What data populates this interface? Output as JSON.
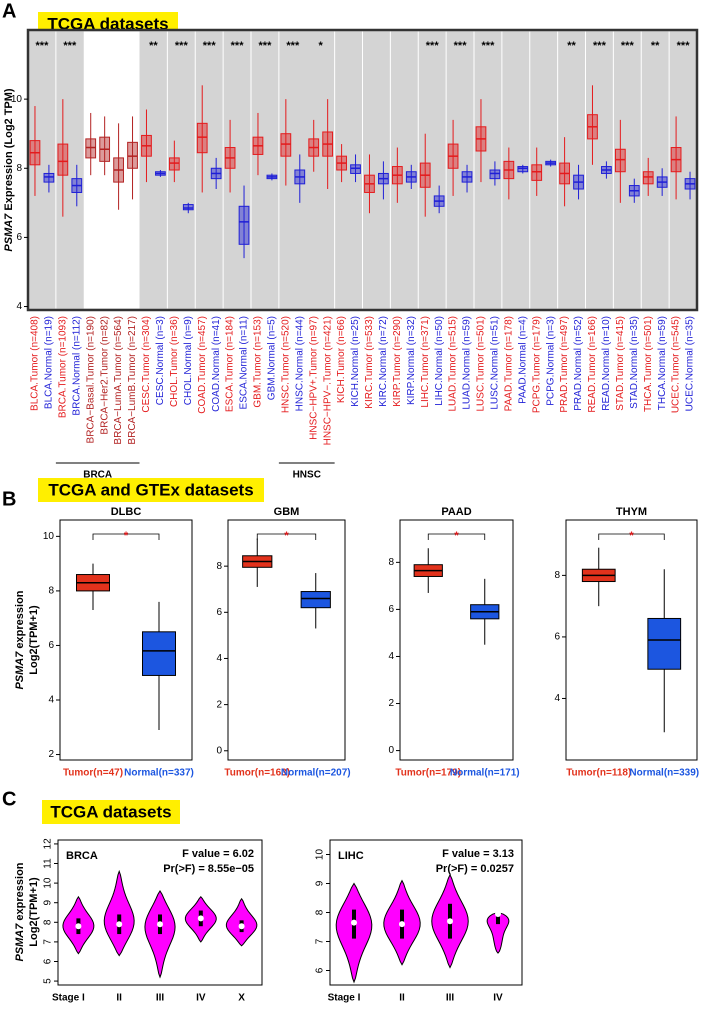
{
  "panels": [
    {
      "letter": "A",
      "badge": "TCGA datasets"
    },
    {
      "letter": "B",
      "badge": "TCGA and GTEx datasets",
      "ylabel_gene": "PSMA7",
      "ylabel": "expression",
      "ylabel2": "Log2(TPM+1)"
    },
    {
      "letter": "C",
      "badge": "TCGA datasets",
      "ylabel_gene": "PSMA7",
      "ylabel": "expression",
      "ylabel2": "Log2(TPM+1)"
    }
  ],
  "chart_data": [
    {
      "type": "box",
      "ylabel_gene": "PSMA7",
      "ylabel": "Expression (Log2 TPM)",
      "categories": [
        "BLCA.Tumor (n=408)",
        "BLCA.Normal (n=19)",
        "BRCA.Tumor (n=1093)",
        "BRCA.Normal (n=112)",
        "BRCA−Basal.Tumor (n=190)",
        "BRCA−Her2.Tumor (n=82)",
        "BRCA−LumA.Tumor (n=564)",
        "BRCA−LumB.Tumor (n=217)",
        "CESC.Tumor (n=304)",
        "CESC.Normal (n=3)",
        "CHOL.Tumor (n=36)",
        "CHOL.Normal (n=9)",
        "COAD.Tumor (n=457)",
        "COAD.Normal (n=41)",
        "ESCA.Tumor (n=184)",
        "ESCA.Normal (n=11)",
        "GBM.Tumor (n=153)",
        "GBM.Normal (n=5)",
        "HNSC.Tumor (n=520)",
        "HNSC.Normal (n=44)",
        "HNSC−HPV+.Tumor (n=97)",
        "HNSC−HPV−.Tumor (n=421)",
        "KICH.Tumor (n=66)",
        "KICH.Normal (n=25)",
        "KIRC.Tumor (n=533)",
        "KIRC.Normal (n=72)",
        "KIRP.Tumor (n=290)",
        "KIRP.Normal (n=32)",
        "LIHC.Tumor (n=371)",
        "LIHC.Normal (n=50)",
        "LUAD.Tumor (n=515)",
        "LUAD.Normal (n=59)",
        "LUSC.Tumor (n=501)",
        "LUSC.Normal (n=51)",
        "PAAD.Tumor (n=178)",
        "PAAD.Normal (n=4)",
        "PCPG.Tumor (n=179)",
        "PCPG.Normal (n=3)",
        "PRAD.Tumor (n=497)",
        "PRAD.Normal (n=52)",
        "READ.Tumor (n=166)",
        "READ.Normal (n=10)",
        "STAD.Tumor (n=415)",
        "STAD.Normal (n=35)",
        "THCA.Tumor (n=501)",
        "THCA.Normal (n=59)",
        "UCEC.Tumor (n=545)",
        "UCEC.Normal (n=35)"
      ],
      "colors": [
        "#e41a1c",
        "#1f1fd6",
        "#e41a1c",
        "#1f1fd6",
        "#b22222",
        "#b22222",
        "#b22222",
        "#b22222",
        "#e41a1c",
        "#1f1fd6",
        "#e41a1c",
        "#1f1fd6",
        "#e41a1c",
        "#1f1fd6",
        "#e41a1c",
        "#1f1fd6",
        "#e41a1c",
        "#1f1fd6",
        "#e41a1c",
        "#1f1fd6",
        "#e41a1c",
        "#e41a1c",
        "#e41a1c",
        "#1f1fd6",
        "#e41a1c",
        "#1f1fd6",
        "#e41a1c",
        "#1f1fd6",
        "#e41a1c",
        "#1f1fd6",
        "#e41a1c",
        "#1f1fd6",
        "#e41a1c",
        "#1f1fd6",
        "#e41a1c",
        "#1f1fd6",
        "#e41a1c",
        "#1f1fd6",
        "#e41a1c",
        "#1f1fd6",
        "#e41a1c",
        "#1f1fd6",
        "#e41a1c",
        "#1f1fd6",
        "#e41a1c",
        "#1f1fd6",
        "#e41a1c",
        "#1f1fd6"
      ],
      "median": [
        8.45,
        7.75,
        8.2,
        7.5,
        8.6,
        8.55,
        7.95,
        8.35,
        8.65,
        7.85,
        8.15,
        6.85,
        8.9,
        7.85,
        8.3,
        6.45,
        8.65,
        7.75,
        8.7,
        7.75,
        8.6,
        8.7,
        8.15,
        8.0,
        7.55,
        7.7,
        7.8,
        7.75,
        7.8,
        7.05,
        8.35,
        7.75,
        8.85,
        7.85,
        7.95,
        8.0,
        7.9,
        8.15,
        7.85,
        7.6,
        9.2,
        7.95,
        8.25,
        7.35,
        7.75,
        7.6,
        8.25,
        7.55
      ],
      "q1": [
        8.1,
        7.6,
        7.8,
        7.3,
        8.3,
        8.2,
        7.6,
        8.0,
        8.35,
        7.8,
        7.95,
        6.8,
        8.45,
        7.7,
        8.0,
        5.8,
        8.4,
        7.7,
        8.35,
        7.55,
        8.35,
        8.35,
        7.95,
        7.85,
        7.3,
        7.55,
        7.55,
        7.6,
        7.45,
        6.9,
        8.0,
        7.6,
        8.5,
        7.7,
        7.7,
        7.9,
        7.65,
        8.1,
        7.55,
        7.4,
        8.85,
        7.85,
        7.9,
        7.2,
        7.55,
        7.45,
        7.9,
        7.4
      ],
      "q3": [
        8.8,
        7.85,
        8.7,
        7.7,
        8.85,
        8.9,
        8.3,
        8.75,
        8.95,
        7.9,
        8.3,
        6.95,
        9.3,
        8.0,
        8.6,
        6.9,
        8.9,
        7.8,
        9.0,
        7.95,
        8.85,
        9.05,
        8.35,
        8.1,
        7.8,
        7.85,
        8.05,
        7.9,
        8.15,
        7.2,
        8.7,
        7.9,
        9.2,
        7.95,
        8.2,
        8.05,
        8.1,
        8.2,
        8.15,
        7.8,
        9.55,
        8.05,
        8.55,
        7.5,
        7.9,
        7.75,
        8.6,
        7.7
      ],
      "whisker_low": [
        7.2,
        7.3,
        6.6,
        6.9,
        7.8,
        7.8,
        6.8,
        7.1,
        7.6,
        7.75,
        7.6,
        6.7,
        7.3,
        7.4,
        7.3,
        5.4,
        7.8,
        7.65,
        7.5,
        7.0,
        7.9,
        7.4,
        7.6,
        7.6,
        6.7,
        7.1,
        7.0,
        7.4,
        6.6,
        6.7,
        7.2,
        7.3,
        7.6,
        7.5,
        7.1,
        7.85,
        7.2,
        8.05,
        6.9,
        7.1,
        8.1,
        7.7,
        7.0,
        7.0,
        7.2,
        7.2,
        7.1,
        7.1
      ],
      "whisker_high": [
        9.8,
        8.1,
        10.0,
        8.1,
        9.6,
        9.5,
        9.3,
        9.5,
        9.7,
        7.95,
        8.8,
        7.0,
        10.4,
        8.3,
        9.4,
        7.5,
        9.6,
        7.85,
        10.0,
        8.4,
        9.4,
        10.0,
        8.7,
        8.4,
        8.4,
        8.2,
        8.6,
        8.1,
        9.0,
        7.5,
        9.4,
        8.1,
        10.0,
        8.2,
        8.6,
        8.1,
        8.6,
        8.25,
        8.9,
        8.1,
        10.4,
        8.2,
        9.4,
        7.7,
        8.3,
        8.0,
        9.5,
        7.9
      ],
      "significance": [
        "***",
        null,
        "***",
        null,
        null,
        null,
        null,
        null,
        "**",
        null,
        "***",
        null,
        "***",
        null,
        "***",
        null,
        "***",
        null,
        "***",
        null,
        "*",
        null,
        null,
        null,
        null,
        null,
        null,
        null,
        "***",
        null,
        "***",
        null,
        "***",
        null,
        null,
        null,
        null,
        null,
        "**",
        null,
        "***",
        null,
        "***",
        null,
        "**",
        null,
        "***",
        null
      ],
      "group_labels": [
        "BRCA",
        "HNSC"
      ],
      "ylim": [
        3.9,
        12.0
      ],
      "yticks": [
        4,
        6,
        8,
        10
      ]
    },
    {
      "type": "box",
      "title": "DLBC",
      "categories": [
        "Tumor(n=47)",
        "Normal(n=337)"
      ],
      "colors": [
        "#e2321c",
        "#1c56e0"
      ],
      "median": [
        8.3,
        5.8
      ],
      "q1": [
        8.0,
        4.9
      ],
      "q3": [
        8.6,
        6.5
      ],
      "whisker_low": [
        7.3,
        2.9
      ],
      "whisker_high": [
        9.0,
        7.6
      ],
      "annotation": "*",
      "ylim": [
        1.8,
        10.6
      ],
      "yticks": [
        2,
        4,
        6,
        8,
        10
      ]
    },
    {
      "type": "box",
      "title": "GBM",
      "categories": [
        "Tumor(n=163)",
        "Normal(n=207)"
      ],
      "colors": [
        "#e2321c",
        "#1c56e0"
      ],
      "median": [
        8.2,
        6.6
      ],
      "q1": [
        7.95,
        6.2
      ],
      "q3": [
        8.45,
        6.9
      ],
      "whisker_low": [
        7.1,
        5.3
      ],
      "whisker_high": [
        9.2,
        7.7
      ],
      "annotation": "*",
      "ylim": [
        -0.4,
        10.0
      ],
      "yticks": [
        0,
        2,
        4,
        6,
        8
      ]
    },
    {
      "type": "box",
      "title": "PAAD",
      "categories": [
        "Tumor(n=179)",
        "Normal(n=171)"
      ],
      "colors": [
        "#e2321c",
        "#1c56e0"
      ],
      "median": [
        7.65,
        5.9
      ],
      "q1": [
        7.4,
        5.6
      ],
      "q3": [
        7.9,
        6.2
      ],
      "whisker_low": [
        6.7,
        4.5
      ],
      "whisker_high": [
        8.6,
        7.3
      ],
      "annotation": "*",
      "ylim": [
        -0.4,
        9.8
      ],
      "yticks": [
        0,
        2,
        4,
        6,
        8
      ]
    },
    {
      "type": "box",
      "title": "THYM",
      "categories": [
        "Tumor(n=118)",
        "Normal(n=339)"
      ],
      "colors": [
        "#e2321c",
        "#1c56e0"
      ],
      "median": [
        8.0,
        5.9
      ],
      "q1": [
        7.8,
        4.95
      ],
      "q3": [
        8.2,
        6.6
      ],
      "whisker_low": [
        7.0,
        2.9
      ],
      "whisker_high": [
        8.9,
        8.2
      ],
      "annotation": "*",
      "ylim": [
        2.0,
        9.8
      ],
      "yticks": [
        4,
        6,
        8
      ]
    },
    {
      "type": "violin",
      "title": "BRCA",
      "color": "#ff00ff",
      "categories": [
        "Stage I",
        "II",
        "III",
        "IV",
        "X"
      ],
      "median": [
        7.8,
        7.9,
        7.9,
        8.2,
        7.8
      ],
      "q1": [
        7.4,
        7.4,
        7.4,
        7.8,
        7.5
      ],
      "q3": [
        8.2,
        8.4,
        8.4,
        8.6,
        8.1
      ],
      "min": [
        6.4,
        6.3,
        5.2,
        7.0,
        6.8
      ],
      "max": [
        9.3,
        10.6,
        9.6,
        9.3,
        9.2
      ],
      "annotations": [
        "F value = 6.02",
        "Pr(>F) = 8.55e−05"
      ],
      "ylim": [
        4.8,
        12.2
      ],
      "yticks": [
        5,
        6,
        7,
        8,
        9,
        10,
        11,
        12
      ]
    },
    {
      "type": "violin",
      "title": "LIHC",
      "color": "#ff00ff",
      "categories": [
        "Stage I",
        "II",
        "III",
        "IV"
      ],
      "median": [
        7.65,
        7.6,
        7.7,
        7.95
      ],
      "q1": [
        7.1,
        7.1,
        7.1,
        7.6
      ],
      "q3": [
        8.1,
        8.1,
        8.3,
        8.0
      ],
      "min": [
        5.6,
        6.2,
        6.1,
        6.6
      ],
      "max": [
        9.0,
        9.1,
        9.3,
        8.0
      ],
      "annotations": [
        "F value = 3.13",
        "Pr(>F) = 0.0257"
      ],
      "ylim": [
        5.5,
        10.5
      ],
      "yticks": [
        6,
        7,
        8,
        9,
        10
      ]
    }
  ]
}
